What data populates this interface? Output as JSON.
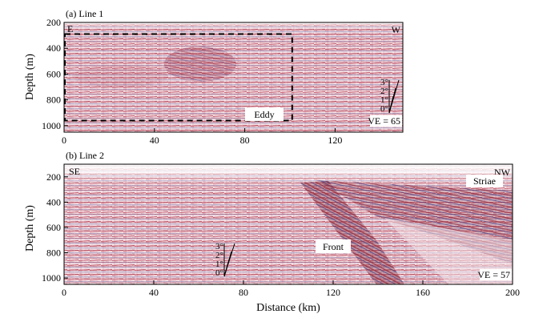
{
  "figure": {
    "xlabel": "Distance (km)",
    "colors": {
      "background": "#f6e7ec",
      "trace_red": "#b43246",
      "trace_blue": "#3b3d8c",
      "frame": "#000000"
    }
  },
  "panels": [
    {
      "title": "(b) Line 2",
      "ylabel": "Depth (m)",
      "left_label": "SE",
      "right_label": "NW",
      "ve_label": "VE = 57",
      "annotations": [
        "Front",
        "Striae"
      ],
      "x_ticks": [
        "0",
        "40",
        "80",
        "120",
        "160",
        "200"
      ],
      "y_ticks": [
        "200",
        "400",
        "600",
        "800",
        "1000"
      ],
      "xlim": [
        0,
        200
      ],
      "ylim": [
        100,
        1050
      ],
      "angle_scale": [
        "3°",
        "2°",
        "1°",
        "0°"
      ]
    },
    {
      "title": "(a) Line 1",
      "ylabel": "Depth (m)",
      "left_label": "E",
      "right_label": "W",
      "ve_label": "VE = 65",
      "annotations": [
        "Eddy"
      ],
      "x_ticks": [
        "0",
        "40",
        "80",
        "120"
      ],
      "y_ticks": [
        "200",
        "400",
        "600",
        "800",
        "1000"
      ],
      "xlim": [
        0,
        150
      ],
      "ylim": [
        200,
        1050
      ],
      "angle_scale": [
        "3°",
        "2°",
        "1°",
        "0°"
      ],
      "eddy_box": {
        "x": [
          0,
          101
        ],
        "depth": [
          290,
          960
        ]
      }
    }
  ]
}
